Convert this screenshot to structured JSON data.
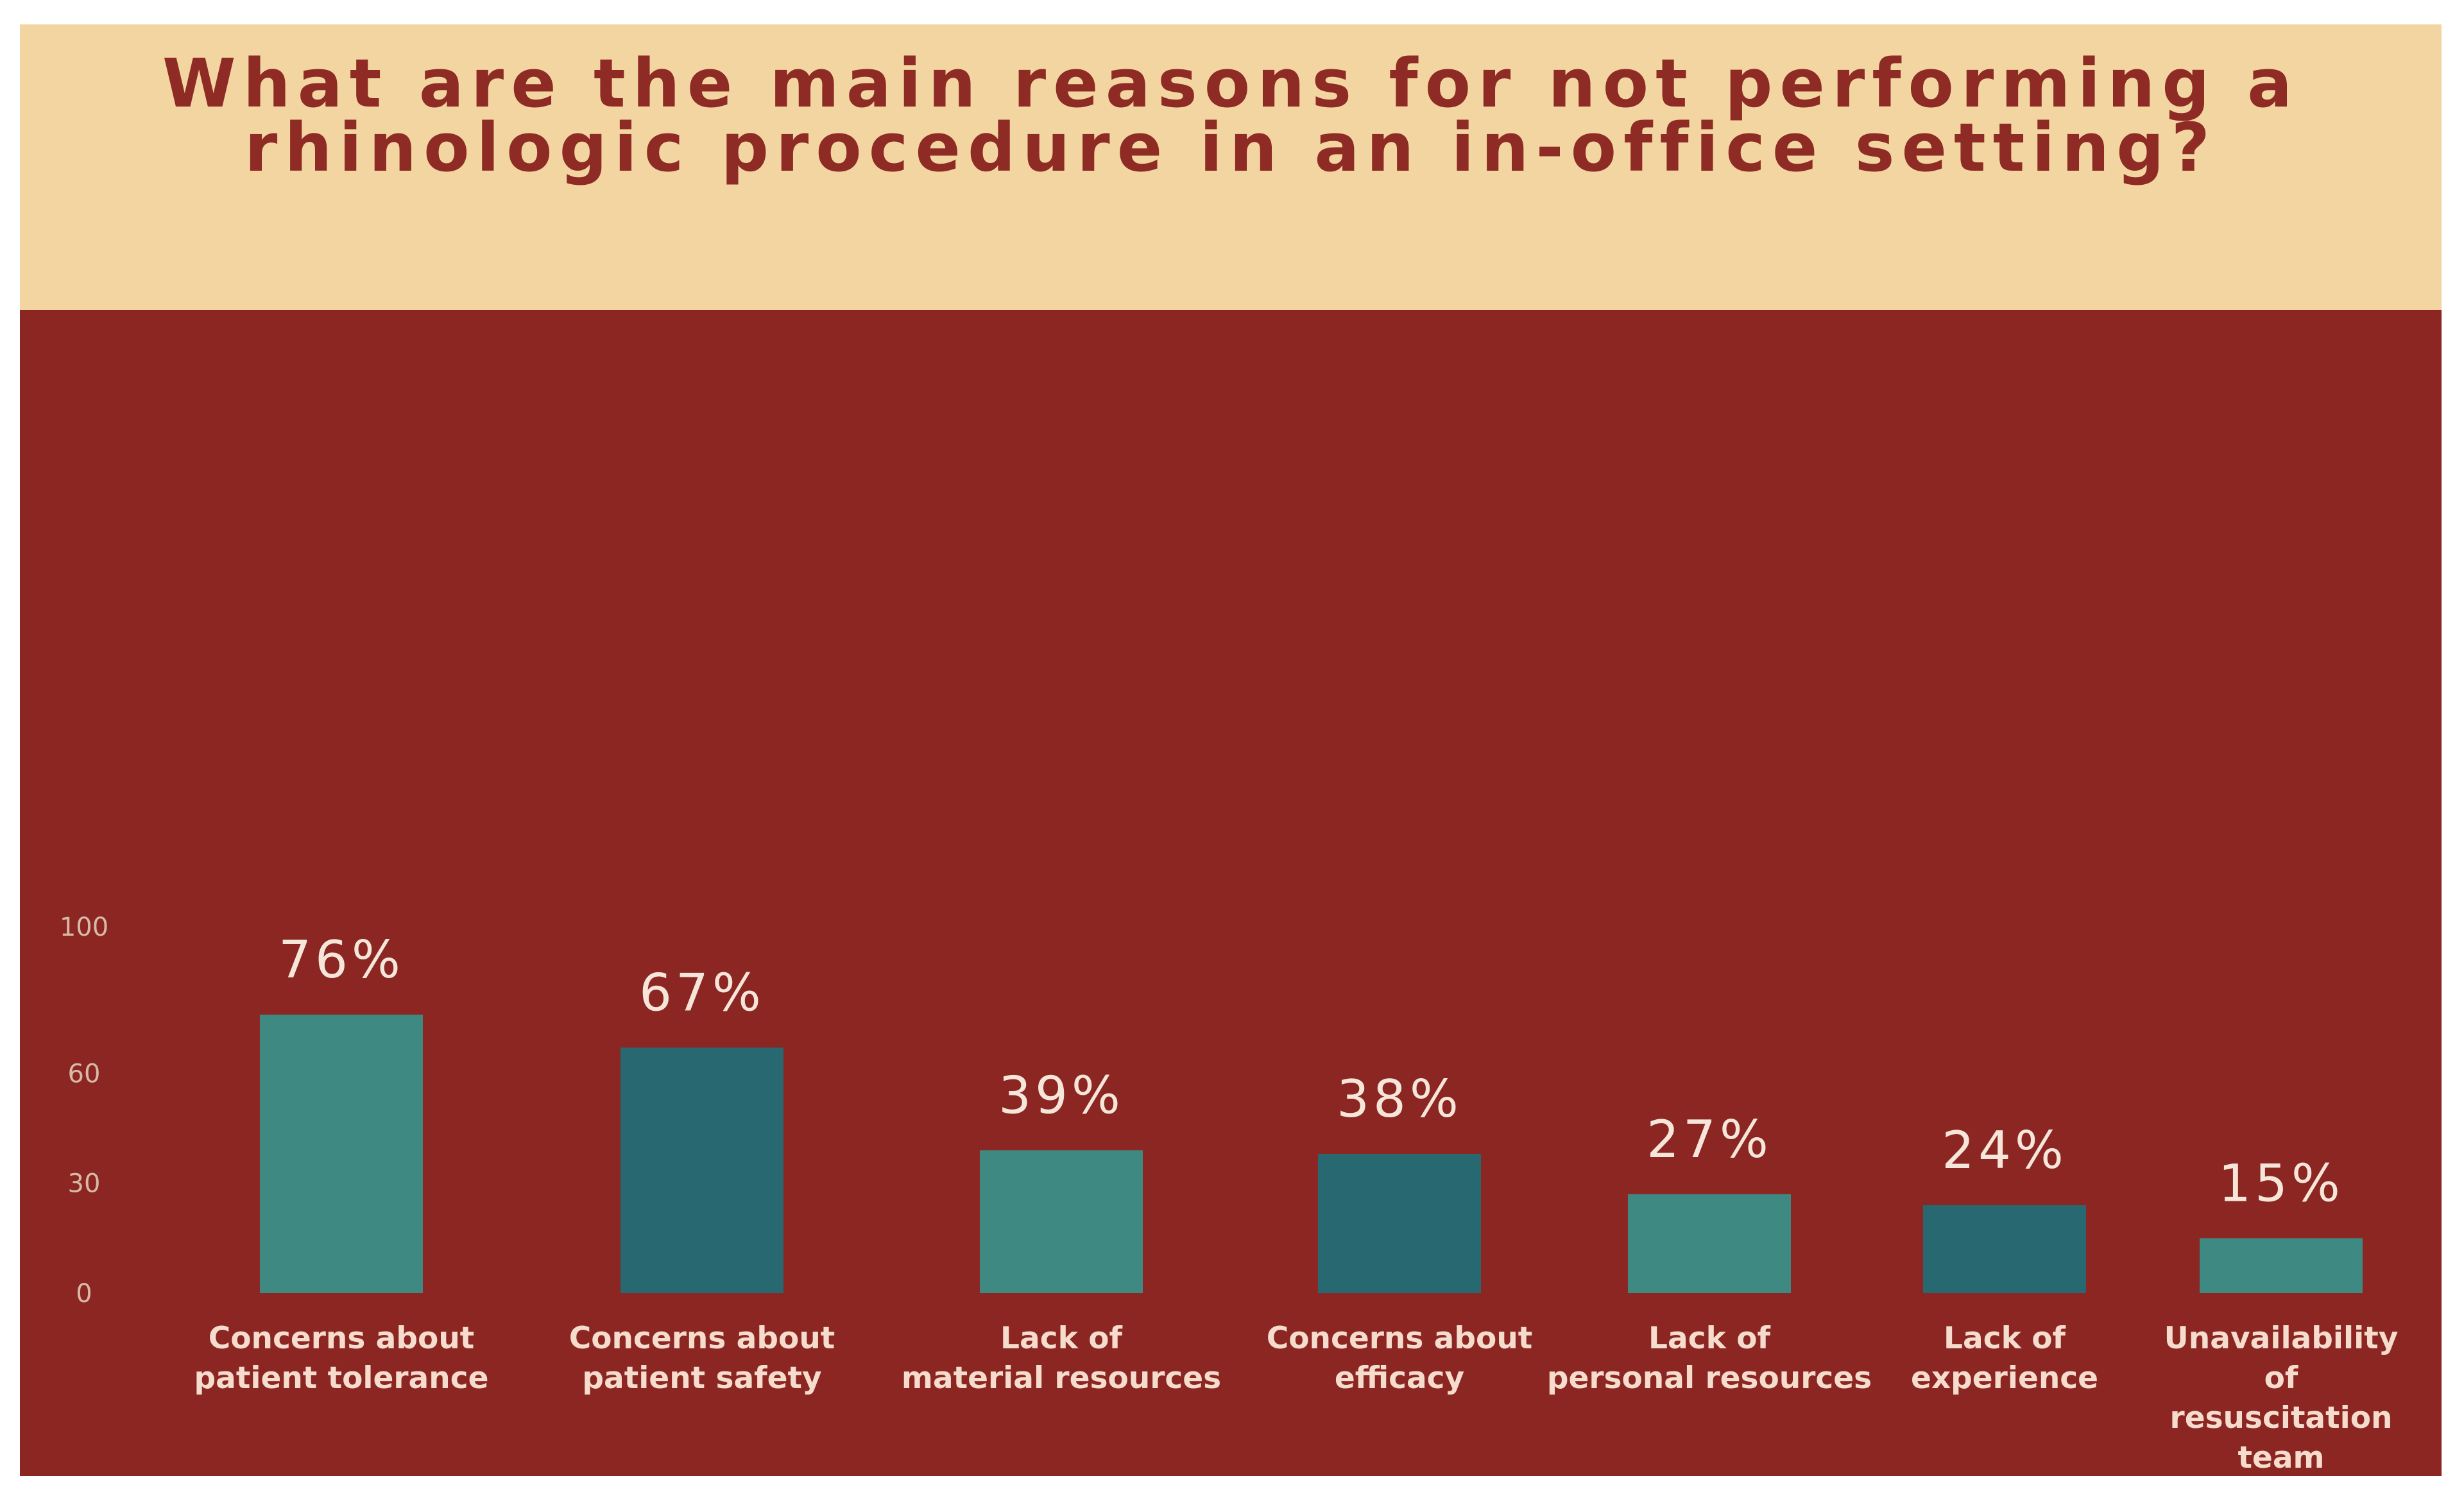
{
  "chart_data": {
    "type": "bar",
    "title": "What are the main reasons for not performing a rhinologic procedure in an in-office setting?",
    "title_lines": [
      "What are the main reasons for not performing a",
      "rhinologic procedure in an in-office setting?"
    ],
    "categories": [
      "Concerns about patient tolerance",
      "Concerns about patient safety",
      "Lack of material resources",
      "Concerns about efficacy",
      "Lack of personal resources",
      "Lack of experience",
      "Unavailability of resuscitation team"
    ],
    "category_lines": [
      [
        "Concerns about",
        "patient tolerance"
      ],
      [
        "Concerns about",
        "patient safety"
      ],
      [
        "Lack of",
        "material resources"
      ],
      [
        "Concerns about",
        "efficacy"
      ],
      [
        "Lack of",
        "personal resources"
      ],
      [
        "Lack of",
        "experience"
      ],
      [
        "Unavailability",
        "of",
        "resuscitation",
        "team"
      ]
    ],
    "values": [
      76,
      67,
      39,
      38,
      27,
      24,
      15
    ],
    "value_labels": [
      "76%",
      "67%",
      "39%",
      "38%",
      "27%",
      "24%",
      "15%"
    ],
    "bar_colors": [
      "#3e8a83",
      "#286971",
      "#3e8a83",
      "#286971",
      "#3e8a83",
      "#286971",
      "#3e8a83"
    ],
    "yticks": [
      0,
      30,
      60,
      100
    ],
    "ytick_labels": [
      "0",
      "30",
      "60",
      "100"
    ],
    "ylim": [
      0,
      100
    ],
    "xlabel": "",
    "ylabel": "",
    "grid": false,
    "legend": "none"
  }
}
